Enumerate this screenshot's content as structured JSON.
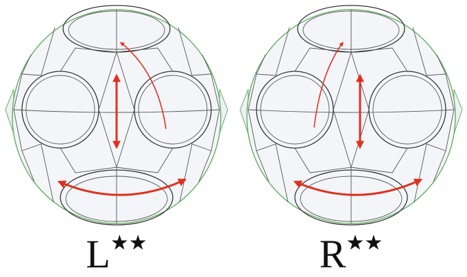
{
  "figures": [
    {
      "label": "L",
      "superscript": "★★"
    },
    {
      "label": "R",
      "superscript": "★★"
    }
  ]
}
